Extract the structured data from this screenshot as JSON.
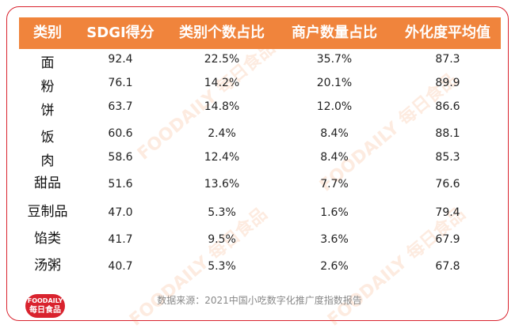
{
  "table": {
    "header": [
      "类别",
      "SDGI得分",
      "类别个数占比",
      "商户数量占比",
      "外化度平均值"
    ],
    "rows": [
      [
        "面",
        "92.4",
        "22.5%",
        "35.7%",
        "87.3"
      ],
      [
        "粉",
        "76.1",
        "14.2%",
        "20.1%",
        "89.9"
      ],
      [
        "饼",
        "63.7",
        "14.8%",
        "12.0%",
        "86.6"
      ],
      [
        "饭",
        "60.6",
        "2.4%",
        "8.4%",
        "88.1"
      ],
      [
        "肉",
        "58.6",
        "12.4%",
        "8.4%",
        "85.3"
      ],
      [
        "甜品",
        "51.6",
        "13.6%",
        "7.7%",
        "76.6"
      ],
      [
        "豆制品",
        "47.0",
        "5.3%",
        "1.6%",
        "79.4"
      ],
      [
        "馅类",
        "41.7",
        "9.5%",
        "3.6%",
        "67.9"
      ],
      [
        "汤粥",
        "40.7",
        "5.3%",
        "2.6%",
        "67.8"
      ]
    ]
  },
  "footer": {
    "source": "数据来源：2021中国小吃数字化推广度指数报告"
  },
  "logo": {
    "brand": "FOODAILY",
    "name": "每日食品"
  }
}
